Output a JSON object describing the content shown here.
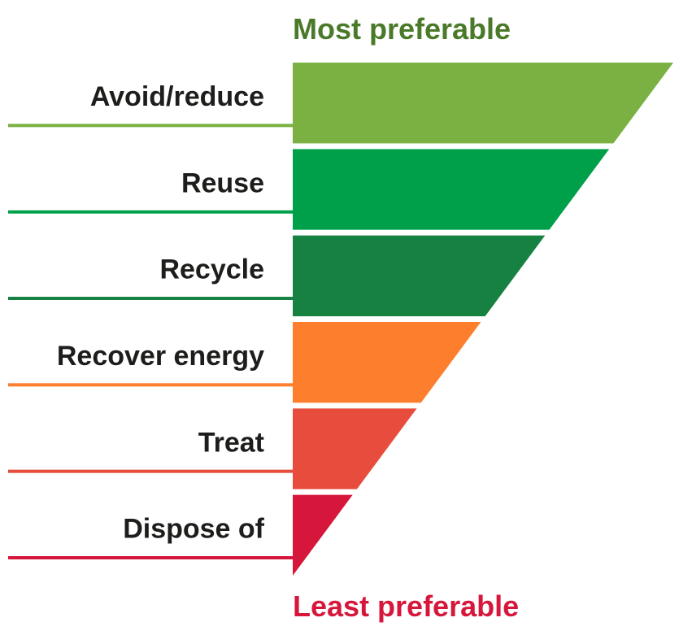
{
  "top_label": {
    "text": "Most preferable",
    "color": "#4a7a29"
  },
  "bottom_label": {
    "text": "Least preferable",
    "color": "#d6173b"
  },
  "text_color": "#1d1d1b",
  "tiers": [
    {
      "label": "Avoid/reduce",
      "color": "#7ab142"
    },
    {
      "label": "Reuse",
      "color": "#00a04a"
    },
    {
      "label": "Recycle",
      "color": "#178141"
    },
    {
      "label": "Recover energy",
      "color": "#fd7f2d"
    },
    {
      "label": "Treat",
      "color": "#e84c3d"
    },
    {
      "label": "Dispose of",
      "color": "#d6173b"
    }
  ]
}
